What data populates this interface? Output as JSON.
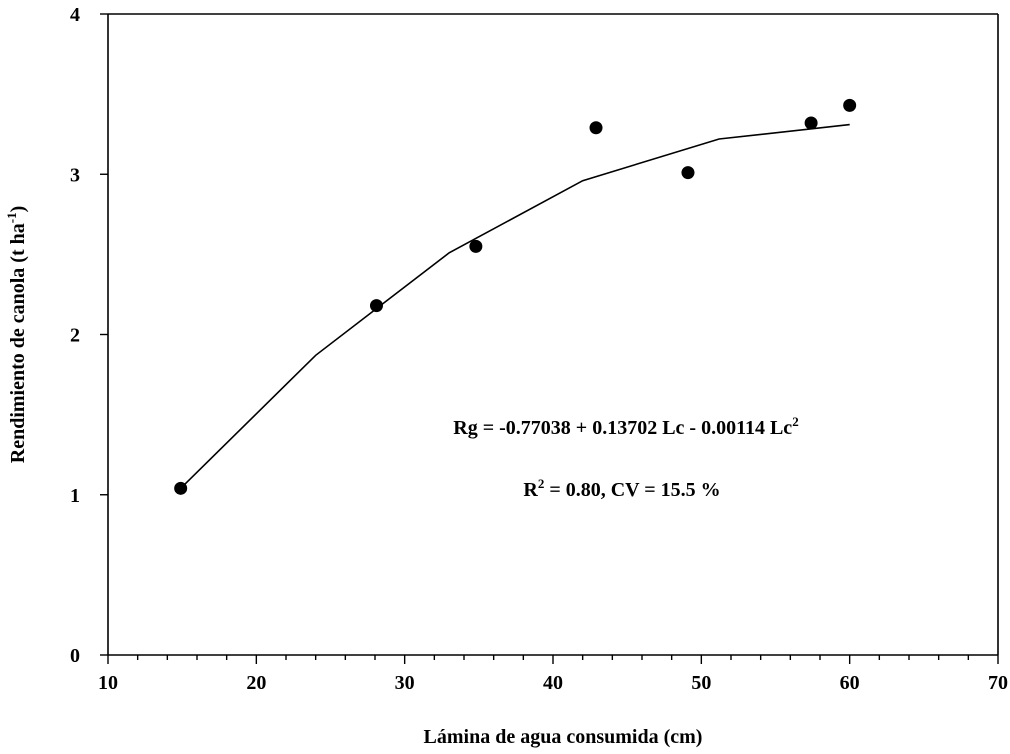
{
  "chart_data": {
    "type": "scatter",
    "title": "",
    "xlabel": "Lámina de agua consumida (cm)",
    "ylabel_main": "Rendimiento de canola (t ha",
    "ylabel_sup": "-1",
    "ylabel_end": ")",
    "xlim": [
      10,
      70
    ],
    "ylim": [
      0,
      4
    ],
    "x_ticks": [
      10,
      20,
      30,
      40,
      50,
      60,
      70
    ],
    "x_tick_labels": [
      "10",
      "20",
      "30",
      "40",
      "50",
      "60",
      "70"
    ],
    "x_minor_step": 2,
    "y_ticks": [
      0,
      1,
      2,
      3,
      4
    ],
    "y_tick_labels": [
      "0",
      "1",
      "2",
      "3",
      "4"
    ],
    "grid": false,
    "legend": "none",
    "series": [
      {
        "style": "markers",
        "color": "#000000",
        "points": [
          {
            "x": 14.9,
            "y": 1.04
          },
          {
            "x": 28.1,
            "y": 2.18
          },
          {
            "x": 34.8,
            "y": 2.55
          },
          {
            "x": 42.9,
            "y": 3.29
          },
          {
            "x": 49.1,
            "y": 3.01
          },
          {
            "x": 57.4,
            "y": 3.32
          },
          {
            "x": 60.0,
            "y": 3.43
          }
        ]
      },
      {
        "style": "line",
        "color": "#000000",
        "points": [
          {
            "x": 14.9,
            "y": 1.04
          },
          {
            "x": 24.0,
            "y": 1.87
          },
          {
            "x": 33.0,
            "y": 2.51
          },
          {
            "x": 42.0,
            "y": 2.96
          },
          {
            "x": 51.2,
            "y": 3.22
          },
          {
            "x": 60.0,
            "y": 3.31
          }
        ]
      }
    ],
    "annotations": {
      "equation_main": "Rg = -0.77038 + 0.13702 Lc - 0.00114 Lc",
      "equation_sup": "2",
      "stats_r": "R",
      "stats_sup": "2",
      "stats_rest": " = 0.80,   CV = 15.5 %"
    }
  }
}
